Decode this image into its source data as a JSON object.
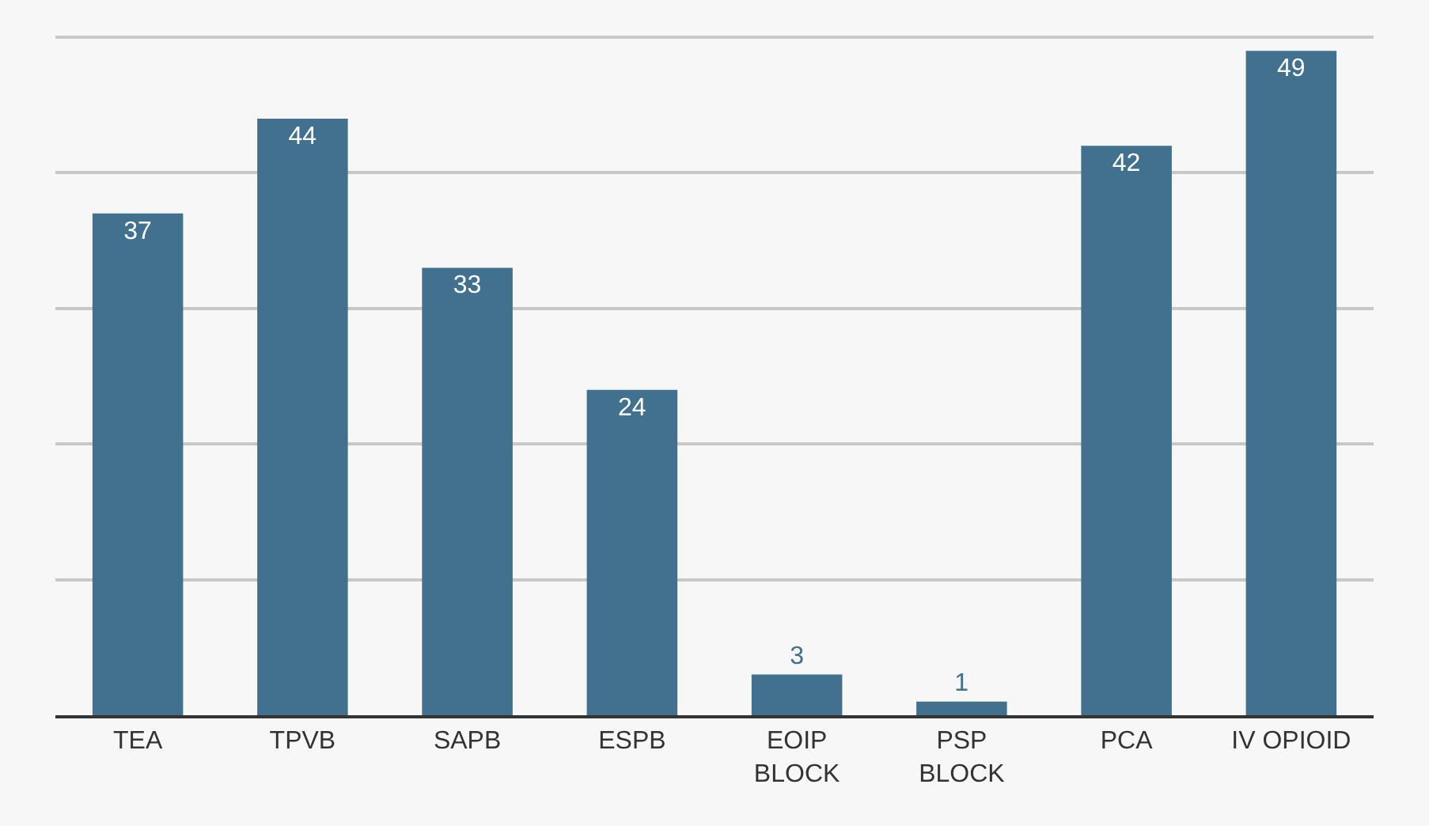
{
  "chart_data": {
    "type": "bar",
    "categories": [
      "TEA",
      "TPVB",
      "SAPB",
      "ESPB",
      "EOIP\nBLOCK",
      "PSP\nBLOCK",
      "PCA",
      "IV OPIOID"
    ],
    "values": [
      37,
      44,
      33,
      24,
      3,
      1,
      42,
      49
    ],
    "color": "#41718f",
    "tick_labels": "x",
    "grid": "y",
    "data_labels": true
  }
}
